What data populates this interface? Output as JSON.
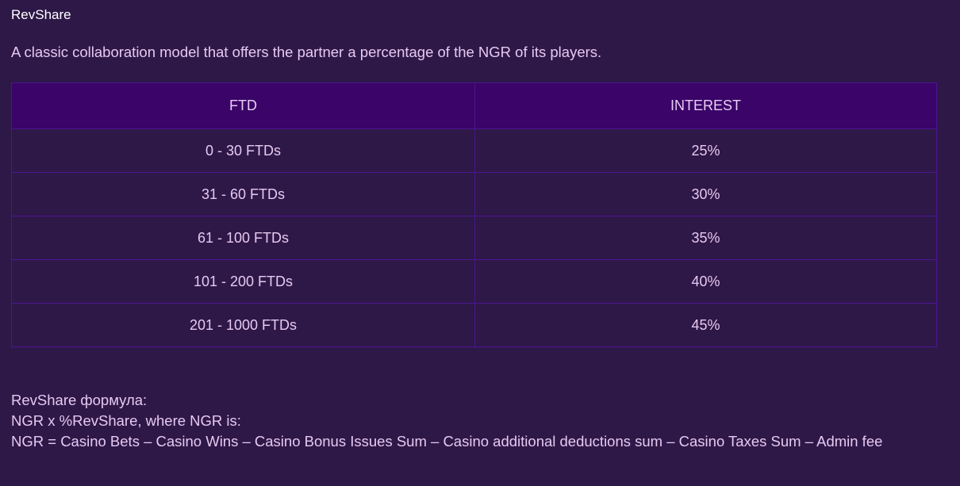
{
  "title": "RevShare",
  "intro": "A classic collaboration model that offers the partner a percentage of the NGR of its players.",
  "table": {
    "headers": [
      "FTD",
      "INTEREST"
    ],
    "rows": [
      {
        "ftd": "0 - 30 FTDs",
        "interest": "25%"
      },
      {
        "ftd": "31 - 60 FTDs",
        "interest": "30%"
      },
      {
        "ftd": "61 - 100 FTDs",
        "interest": "35%"
      },
      {
        "ftd": "101 - 200 FTDs",
        "interest": "40%"
      },
      {
        "ftd": "201 - 1000 FTDs",
        "interest": "45%"
      }
    ]
  },
  "formula": {
    "heading": "RevShare формула:",
    "line1": "NGR x %RevShare, where NGR is:",
    "line2": "NGR = Casino Bets – Casino Wins – Casino Bonus Issues Sum – Casino additional deductions sum – Casino Taxes Sum – Admin fee"
  },
  "colors": {
    "background": "#2e1848",
    "header_bg": "#3a0468",
    "border": "#4b1590",
    "text": "#e6c9f0",
    "title": "#ffffff"
  }
}
